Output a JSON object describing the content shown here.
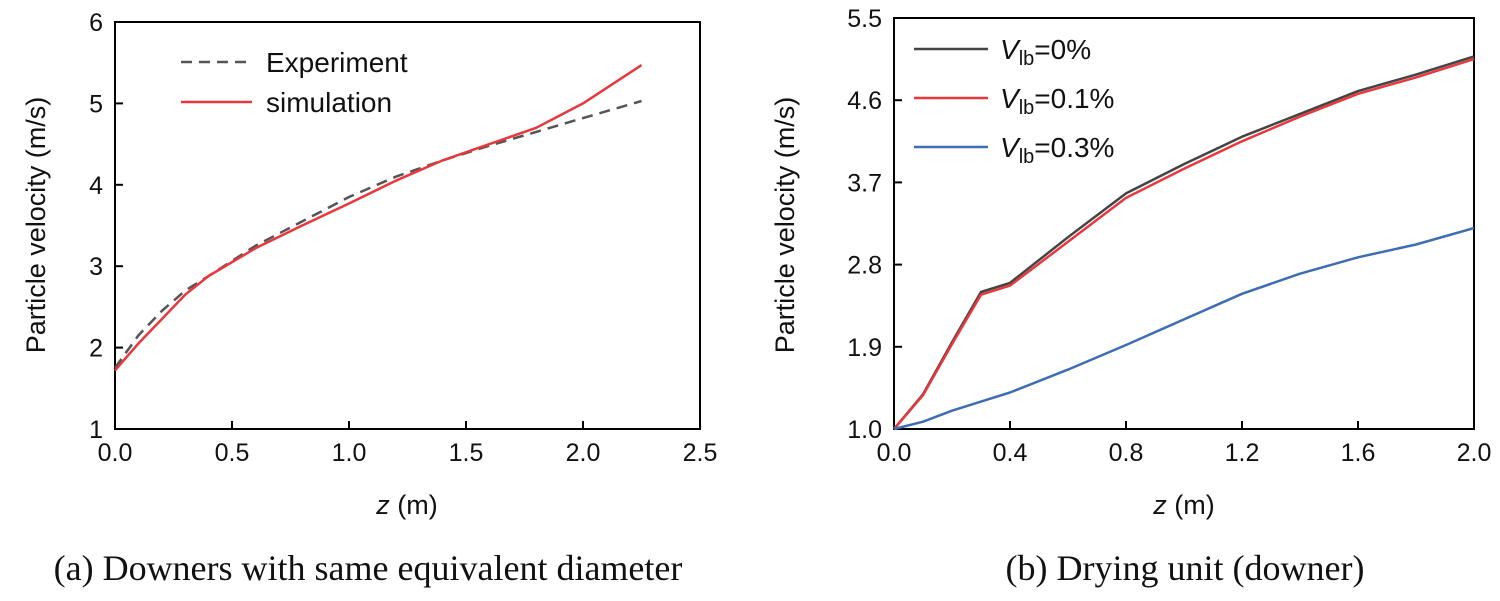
{
  "chart_data": [
    {
      "type": "line",
      "title": "",
      "xlabel": "z (m)",
      "xlabel_var": "z",
      "xlabel_unit": " (m)",
      "ylabel": "Particle velocity (m/s)",
      "xlim": [
        0,
        2.5
      ],
      "ylim": [
        1,
        6
      ],
      "xticks": [
        "0.0",
        "0.5",
        "1.0",
        "1.5",
        "2.0",
        "2.5"
      ],
      "yticks": [
        "1",
        "2",
        "3",
        "4",
        "5",
        "6"
      ],
      "grid": false,
      "legend_placement": "top-left",
      "caption": "(a) Downers with same equivalent diameter",
      "series": [
        {
          "name": "Experiment",
          "color": "#555555",
          "dash": "dashed",
          "x": [
            0,
            0.1,
            0.2,
            0.3,
            0.4,
            0.6,
            0.8,
            1.0,
            1.2,
            1.4,
            1.6,
            1.8,
            2.0,
            2.25
          ],
          "y": [
            1.75,
            2.15,
            2.45,
            2.7,
            2.88,
            3.25,
            3.55,
            3.85,
            4.1,
            4.3,
            4.48,
            4.65,
            4.82,
            5.03
          ]
        },
        {
          "name": "simulation",
          "color": "#e8383d",
          "dash": "solid",
          "x": [
            0,
            0.1,
            0.2,
            0.3,
            0.4,
            0.6,
            0.8,
            1.0,
            1.2,
            1.4,
            1.6,
            1.8,
            2.0,
            2.25
          ],
          "y": [
            1.72,
            2.05,
            2.35,
            2.65,
            2.88,
            3.22,
            3.5,
            3.77,
            4.05,
            4.3,
            4.5,
            4.7,
            5.0,
            5.47
          ]
        }
      ]
    },
    {
      "type": "line",
      "title": "",
      "xlabel": "z (m)",
      "xlabel_var": "z",
      "xlabel_unit": " (m)",
      "ylabel": "Particle velocity (m/s)",
      "xlim": [
        0,
        2.0
      ],
      "ylim": [
        1.0,
        5.5
      ],
      "xticks": [
        "0.0",
        "0.4",
        "0.8",
        "1.2",
        "1.6",
        "2.0"
      ],
      "yticks": [
        "1.0",
        "1.9",
        "2.8",
        "3.7",
        "4.6",
        "5.5"
      ],
      "grid": false,
      "legend_placement": "top-left",
      "caption": "(b) Drying unit (downer)",
      "series": [
        {
          "name": "Vlb=0%",
          "name_var": "V",
          "name_sub": "lb",
          "name_rest": "=0%",
          "color": "#444444",
          "dash": "solid",
          "x": [
            0,
            0.1,
            0.2,
            0.3,
            0.4,
            0.6,
            0.8,
            1.0,
            1.2,
            1.4,
            1.6,
            1.8,
            2.0
          ],
          "y": [
            1.0,
            1.38,
            1.95,
            2.5,
            2.6,
            3.1,
            3.58,
            3.9,
            4.2,
            4.45,
            4.7,
            4.88,
            5.08
          ]
        },
        {
          "name": "Vlb=0.1%",
          "name_var": "V",
          "name_sub": "lb",
          "name_rest": "=0.1%",
          "color": "#e8383d",
          "dash": "solid",
          "x": [
            0,
            0.1,
            0.2,
            0.3,
            0.4,
            0.6,
            0.8,
            1.0,
            1.2,
            1.4,
            1.6,
            1.8,
            2.0
          ],
          "y": [
            1.0,
            1.37,
            1.93,
            2.47,
            2.57,
            3.05,
            3.53,
            3.85,
            4.15,
            4.42,
            4.67,
            4.85,
            5.05
          ]
        },
        {
          "name": "Vlb=0.3%",
          "name_var": "V",
          "name_sub": "lb",
          "name_rest": "=0.3%",
          "color": "#3d6db3",
          "dash": "solid",
          "x": [
            0,
            0.1,
            0.2,
            0.3,
            0.4,
            0.6,
            0.8,
            1.0,
            1.2,
            1.4,
            1.6,
            1.8,
            2.0
          ],
          "y": [
            1.0,
            1.08,
            1.2,
            1.3,
            1.4,
            1.65,
            1.92,
            2.2,
            2.48,
            2.7,
            2.88,
            3.02,
            3.2
          ]
        }
      ]
    }
  ]
}
